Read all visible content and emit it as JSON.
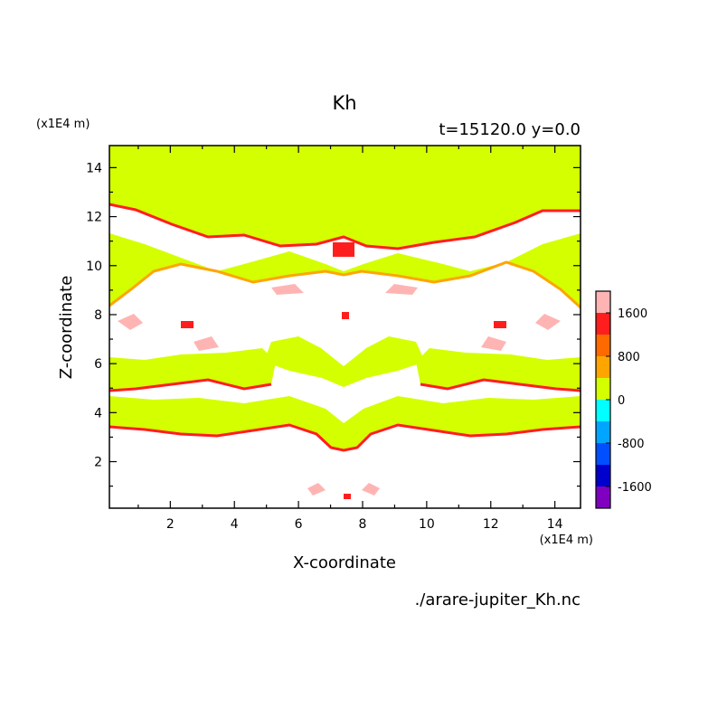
{
  "chart_data": {
    "type": "heatmap",
    "title": "Kh",
    "subtitle": "t=15120.0 y=0.0",
    "xlabel": "X-coordinate",
    "ylabel": "Z-coordinate",
    "x_unit": "(x1E4 m)",
    "y_unit": "(x1E4 m)",
    "xlim": [
      0.1,
      14.8
    ],
    "ylim": [
      0.1,
      14.9
    ],
    "x_ticks": [
      "2",
      "4",
      "6",
      "8",
      "10",
      "12",
      "14"
    ],
    "y_ticks": [
      "2",
      "4",
      "6",
      "8",
      "10",
      "12",
      "14"
    ],
    "source_file": "./arare-jupiter_Kh.nc",
    "colorbar": {
      "tick_labels": [
        "1600",
        "800",
        "0",
        "-800",
        "-1600"
      ],
      "levels": [
        {
          "min": -2000,
          "max": -1600,
          "color": "#7f00bf"
        },
        {
          "min": -1600,
          "max": -1200,
          "color": "#0000cd"
        },
        {
          "min": -1200,
          "max": -800,
          "color": "#0050ff"
        },
        {
          "min": -800,
          "max": -400,
          "color": "#00a5ff"
        },
        {
          "min": -400,
          "max": 0,
          "color": "#00ffff"
        },
        {
          "min": 0,
          "max": 400,
          "color": "#d4ff00"
        },
        {
          "min": 400,
          "max": 800,
          "color": "#ffa500"
        },
        {
          "min": 800,
          "max": 1200,
          "color": "#ff6a00"
        },
        {
          "min": 1200,
          "max": 1600,
          "color": "#ff1e1e"
        },
        {
          "min": 1600,
          "max": 2000,
          "color": "#ffb4b4"
        }
      ]
    },
    "background_color": "#ffffff",
    "dominant_upper_color": "#d4ff00",
    "grid": false
  }
}
